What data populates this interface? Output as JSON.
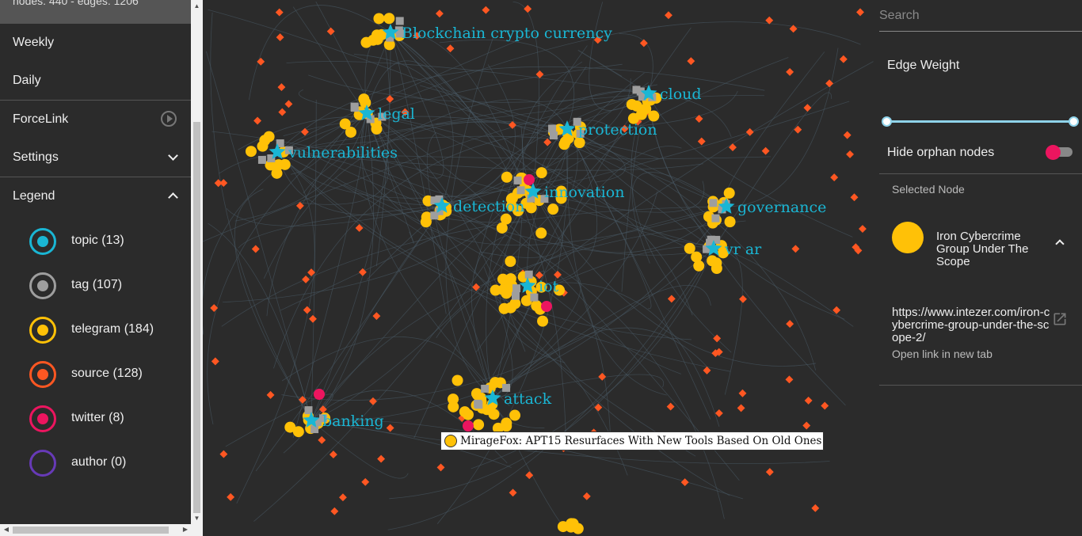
{
  "sidebar": {
    "stats": "nodes: 440 - edges: 1206",
    "items": [
      {
        "label": "Weekly"
      },
      {
        "label": "Daily"
      }
    ],
    "forcelink": "ForceLink",
    "settings": "Settings",
    "legend_title": "Legend",
    "legend": [
      {
        "label": "topic (13)",
        "color": "#1ab6d4",
        "filled": true
      },
      {
        "label": "tag (107)",
        "color": "#9e9e9e",
        "filled": true
      },
      {
        "label": "telegram (184)",
        "color": "#ffc107",
        "filled": true
      },
      {
        "label": "source (128)",
        "color": "#ff5722",
        "filled": true
      },
      {
        "label": "twitter (8)",
        "color": "#ec155f",
        "filled": true
      },
      {
        "label": "author (0)",
        "color": "#673ab7",
        "filled": false
      }
    ]
  },
  "graph": {
    "topics": [
      "Blockchain crypto currency",
      "legal",
      "vulnerabilities",
      "cloud",
      "protection",
      "innovation",
      "detection",
      "governance",
      "vr ar",
      "iot",
      "attack",
      "banking"
    ],
    "tooltip": "MirageFox: APT15 Resurfaces With New Tools Based On Old Ones"
  },
  "panel": {
    "search_placeholder": "Search",
    "edge_weight": "Edge Weight",
    "hide_orphans": "Hide orphan nodes",
    "selected_title": "Selected Node",
    "selected_name": "Iron Cybercrime Group Under The Scope",
    "selected_url": "https://www.intezer.com/iron-cybercrime-group-under-the-scope-2/",
    "open_link": "Open link in new tab"
  }
}
